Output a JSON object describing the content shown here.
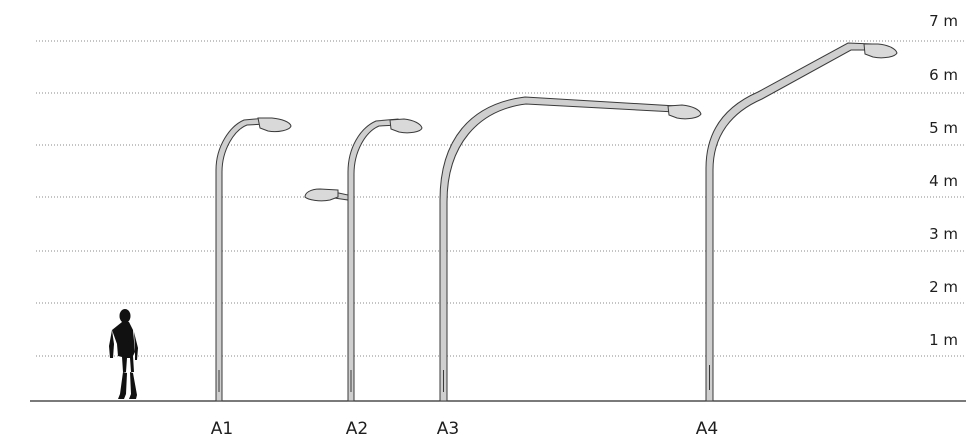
{
  "height_scale": {
    "unit": "m",
    "levels": [
      {
        "value": 1,
        "label": "1 m"
      },
      {
        "value": 2,
        "label": "2 m"
      },
      {
        "value": 3,
        "label": "3 m"
      },
      {
        "value": 4,
        "label": "4 m"
      },
      {
        "value": 5,
        "label": "5 m"
      },
      {
        "value": 6,
        "label": "6 m"
      },
      {
        "value": 7,
        "label": "7 m"
      }
    ]
  },
  "poles": [
    {
      "id": "A1",
      "label": "A1"
    },
    {
      "id": "A2",
      "label": "A2"
    },
    {
      "id": "A3",
      "label": "A3"
    },
    {
      "id": "A4",
      "label": "A4"
    }
  ],
  "colors": {
    "pole_fill": "#cfcfcf",
    "pole_stroke": "#3a3a3a",
    "luminaire_fill": "#d9d9d9",
    "silhouette": "#111111"
  }
}
